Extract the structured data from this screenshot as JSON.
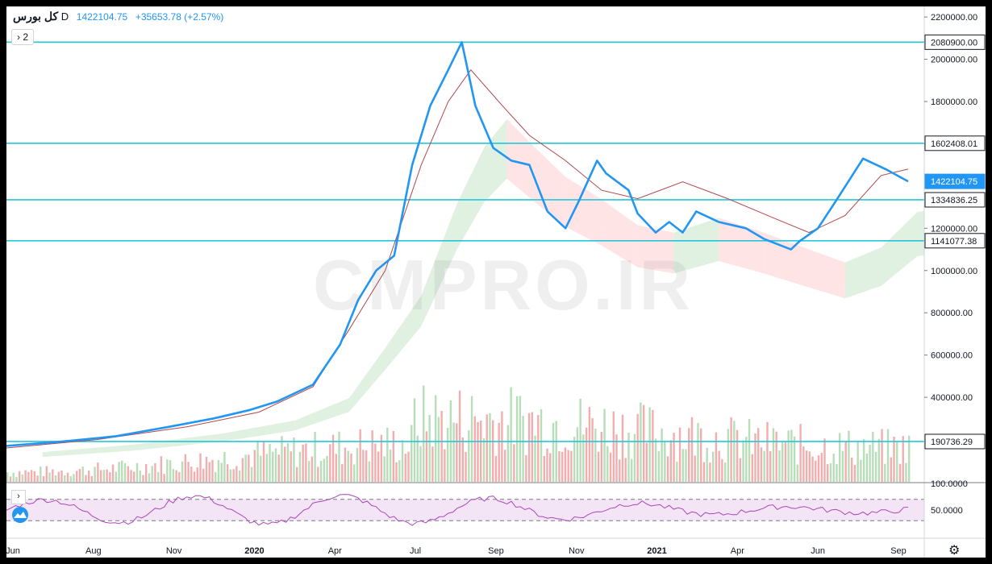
{
  "header": {
    "symbol": "کل بورس",
    "interval": "D",
    "price": "1422104.75",
    "change": "+35653.78 (+2.57%)"
  },
  "legend_toggle": {
    "chevron": "›",
    "count": "2"
  },
  "watermark": "CMPRO.IR",
  "icons": {
    "collapse": "chevron-right-icon",
    "logo": "tradingview-logo-icon",
    "settings": "gear-icon"
  },
  "colors": {
    "price": "#2196f3",
    "ma": "#b2474a",
    "cloud_up": "#c8e6c9",
    "cloud_down": "#ffcdd2",
    "vol_up": "#a5d6a7",
    "vol_down": "#ef9a9a",
    "level": "#26c6da",
    "rsi": "#ab47bc"
  },
  "chart_data": {
    "type": "line",
    "x_ticks": [
      "Jun",
      "Aug",
      "Nov",
      "2020",
      "Apr",
      "Jul",
      "Sep",
      "Nov",
      "2021",
      "Apr",
      "Jun",
      "Sep"
    ],
    "y_ticks": [
      "2200000.00",
      "2000000.00",
      "1800000.00",
      "1600000.00",
      "1200000.00",
      "1000000.00",
      "800000.00",
      "600000.00",
      "400000.00"
    ],
    "ylim": [
      0,
      2250000
    ],
    "price_labels": [
      "2080900.00",
      "1602408.01",
      "1422104.75",
      "1334836.25",
      "1141077.38",
      "190736.29"
    ],
    "horizontal_levels": [
      2080900.0,
      1602408.01,
      1334836.25,
      1141077.38,
      190736.29
    ],
    "last_price": 1422104.75,
    "series": [
      {
        "name": "",
        "values": [
          [
            0,
            170000
          ],
          [
            0.06,
            190000
          ],
          [
            0.12,
            215000
          ],
          [
            0.18,
            260000
          ],
          [
            0.23,
            300000
          ],
          [
            0.27,
            340000
          ],
          [
            0.3,
            380000
          ],
          [
            0.34,
            460000
          ],
          [
            0.37,
            650000
          ],
          [
            0.39,
            860000
          ],
          [
            0.41,
            1000000
          ],
          [
            0.43,
            1070000
          ],
          [
            0.45,
            1500000
          ],
          [
            0.47,
            1780000
          ],
          [
            0.49,
            1950000
          ],
          [
            0.505,
            2080900
          ],
          [
            0.52,
            1780000
          ],
          [
            0.54,
            1580000
          ],
          [
            0.56,
            1520000
          ],
          [
            0.58,
            1500000
          ],
          [
            0.6,
            1280000
          ],
          [
            0.62,
            1200000
          ],
          [
            0.635,
            1330000
          ],
          [
            0.655,
            1520000
          ],
          [
            0.665,
            1460000
          ],
          [
            0.69,
            1380000
          ],
          [
            0.7,
            1270000
          ],
          [
            0.72,
            1180000
          ],
          [
            0.735,
            1230000
          ],
          [
            0.75,
            1180000
          ],
          [
            0.765,
            1280000
          ],
          [
            0.79,
            1230000
          ],
          [
            0.82,
            1200000
          ],
          [
            0.84,
            1150000
          ],
          [
            0.87,
            1100000
          ],
          [
            0.88,
            1140000
          ],
          [
            0.9,
            1200000
          ],
          [
            0.92,
            1330000
          ],
          [
            0.95,
            1530000
          ],
          [
            0.975,
            1480000
          ],
          [
            1.0,
            1422104.75
          ]
        ]
      },
      {
        "name": "",
        "values": [
          [
            0,
            160000
          ],
          [
            0.1,
            200000
          ],
          [
            0.2,
            260000
          ],
          [
            0.28,
            330000
          ],
          [
            0.34,
            450000
          ],
          [
            0.38,
            720000
          ],
          [
            0.42,
            1000000
          ],
          [
            0.46,
            1500000
          ],
          [
            0.49,
            1800000
          ],
          [
            0.515,
            1950000
          ],
          [
            0.55,
            1780000
          ],
          [
            0.58,
            1640000
          ],
          [
            0.62,
            1520000
          ],
          [
            0.66,
            1380000
          ],
          [
            0.7,
            1340000
          ],
          [
            0.75,
            1420000
          ],
          [
            0.8,
            1340000
          ],
          [
            0.85,
            1250000
          ],
          [
            0.89,
            1180000
          ],
          [
            0.93,
            1260000
          ],
          [
            0.97,
            1450000
          ],
          [
            1.0,
            1480000
          ]
        ]
      }
    ],
    "volume": {
      "ylim": [
        0,
        600000
      ]
    },
    "rsi": {
      "y_ticks": [
        "100.0000",
        "50.0000"
      ],
      "bands": [
        70,
        30
      ],
      "ylim": [
        0,
        100
      ]
    }
  }
}
